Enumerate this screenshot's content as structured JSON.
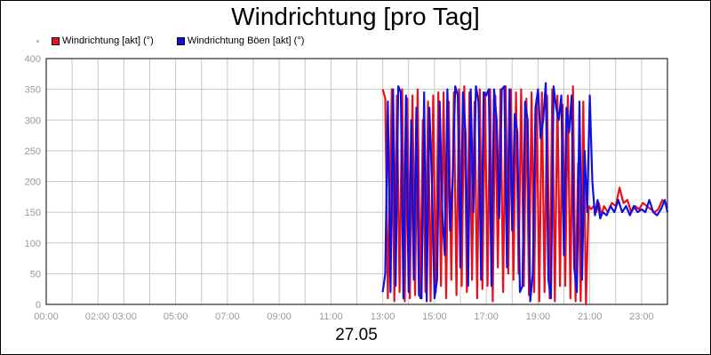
{
  "chart_data": {
    "type": "line",
    "title": "Windrichtung [pro Tag]",
    "date_label": "27.05",
    "ylim": [
      0,
      400
    ],
    "yticks": [
      "0",
      "50",
      "100",
      "150",
      "200",
      "250",
      "300",
      "350",
      "400"
    ],
    "xlim": [
      0,
      24
    ],
    "xticks": [
      {
        "h": 0,
        "label": "00:00"
      },
      {
        "h": 2.5,
        "label": "02:00 03:00"
      },
      {
        "h": 5,
        "label": "05:00"
      },
      {
        "h": 7,
        "label": "07:00"
      },
      {
        "h": 9,
        "label": "09:00"
      },
      {
        "h": 11,
        "label": "11:00"
      },
      {
        "h": 13,
        "label": "13:00"
      },
      {
        "h": 15,
        "label": "15:00"
      },
      {
        "h": 17,
        "label": "17:00"
      },
      {
        "h": 19,
        "label": "19:00"
      },
      {
        "h": 21,
        "label": "21:00"
      },
      {
        "h": 23,
        "label": "23:00"
      }
    ],
    "grid": true,
    "legend_placement": "top-left",
    "series": [
      {
        "name": "Windrichtung [akt] (°)",
        "color": "#e8101c",
        "points": [
          [
            13.0,
            350
          ],
          [
            13.1,
            335
          ],
          [
            13.2,
            10
          ],
          [
            13.35,
            350
          ],
          [
            13.45,
            5
          ],
          [
            13.55,
            340
          ],
          [
            13.65,
            20
          ],
          [
            13.75,
            350
          ],
          [
            13.85,
            5
          ],
          [
            13.95,
            335
          ],
          [
            14.05,
            10
          ],
          [
            14.15,
            340
          ],
          [
            14.25,
            15
          ],
          [
            14.35,
            350
          ],
          [
            14.45,
            10
          ],
          [
            14.55,
            300
          ],
          [
            14.65,
            20
          ],
          [
            14.75,
            330
          ],
          [
            14.85,
            5
          ],
          [
            14.95,
            340
          ],
          [
            15.05,
            20
          ],
          [
            15.15,
            345
          ],
          [
            15.25,
            30
          ],
          [
            15.35,
            345
          ],
          [
            15.45,
            10
          ],
          [
            15.55,
            330
          ],
          [
            15.65,
            40
          ],
          [
            15.75,
            345
          ],
          [
            15.85,
            15
          ],
          [
            15.95,
            350
          ],
          [
            16.05,
            30
          ],
          [
            16.15,
            355
          ],
          [
            16.25,
            20
          ],
          [
            16.35,
            345
          ],
          [
            16.45,
            40
          ],
          [
            16.55,
            330
          ],
          [
            16.65,
            10
          ],
          [
            16.75,
            350
          ],
          [
            16.85,
            25
          ],
          [
            16.95,
            345
          ],
          [
            17.05,
            30
          ],
          [
            17.15,
            350
          ],
          [
            17.25,
            5
          ],
          [
            17.35,
            340
          ],
          [
            17.45,
            60
          ],
          [
            17.55,
            350
          ],
          [
            17.65,
            20
          ],
          [
            17.75,
            355
          ],
          [
            17.85,
            50
          ],
          [
            17.95,
            350
          ],
          [
            18.05,
            40
          ],
          [
            18.15,
            345
          ],
          [
            18.25,
            50
          ],
          [
            18.35,
            350
          ],
          [
            18.45,
            30
          ],
          [
            18.55,
            335
          ],
          [
            18.65,
            15
          ],
          [
            18.75,
            345
          ],
          [
            18.85,
            20
          ],
          [
            18.95,
            335
          ],
          [
            19.05,
            5
          ],
          [
            19.15,
            345
          ],
          [
            19.25,
            20
          ],
          [
            19.35,
            340
          ],
          [
            19.45,
            10
          ],
          [
            19.55,
            350
          ],
          [
            19.65,
            5
          ],
          [
            19.75,
            340
          ],
          [
            19.85,
            30
          ],
          [
            19.95,
            325
          ],
          [
            20.05,
            30
          ],
          [
            20.15,
            340
          ],
          [
            20.25,
            10
          ],
          [
            20.35,
            355
          ],
          [
            20.45,
            5
          ],
          [
            20.55,
            230
          ],
          [
            20.65,
            5
          ],
          [
            20.75,
            330
          ],
          [
            20.85,
            0
          ],
          [
            20.95,
            160
          ],
          [
            21.05,
            155
          ],
          [
            21.15,
            160
          ],
          [
            21.25,
            150
          ],
          [
            21.35,
            165
          ],
          [
            21.45,
            145
          ],
          [
            21.55,
            160
          ],
          [
            21.7,
            150
          ],
          [
            21.85,
            165
          ],
          [
            22.0,
            160
          ],
          [
            22.15,
            190
          ],
          [
            22.3,
            165
          ],
          [
            22.45,
            170
          ],
          [
            22.6,
            150
          ],
          [
            22.75,
            160
          ],
          [
            22.9,
            155
          ],
          [
            23.05,
            165
          ],
          [
            23.2,
            160
          ],
          [
            23.35,
            155
          ],
          [
            23.5,
            150
          ],
          [
            23.65,
            155
          ],
          [
            23.8,
            170
          ],
          [
            24.0,
            160
          ]
        ]
      },
      {
        "name": "Windrichtung Böen [akt] (°)",
        "color": "#1010e0",
        "points": [
          [
            13.0,
            20
          ],
          [
            13.1,
            50
          ],
          [
            13.2,
            330
          ],
          [
            13.3,
            20
          ],
          [
            13.4,
            350
          ],
          [
            13.5,
            30
          ],
          [
            13.6,
            355
          ],
          [
            13.7,
            345
          ],
          [
            13.8,
            10
          ],
          [
            13.9,
            340
          ],
          [
            14.0,
            20
          ],
          [
            14.1,
            300
          ],
          [
            14.2,
            40
          ],
          [
            14.3,
            320
          ],
          [
            14.4,
            15
          ],
          [
            14.5,
            10
          ],
          [
            14.6,
            345
          ],
          [
            14.7,
            5
          ],
          [
            14.8,
            320
          ],
          [
            14.9,
            200
          ],
          [
            15.0,
            10
          ],
          [
            15.1,
            40
          ],
          [
            15.2,
            330
          ],
          [
            15.3,
            150
          ],
          [
            15.4,
            80
          ],
          [
            15.5,
            350
          ],
          [
            15.6,
            120
          ],
          [
            15.7,
            200
          ],
          [
            15.8,
            355
          ],
          [
            15.9,
            340
          ],
          [
            16.0,
            60
          ],
          [
            16.1,
            345
          ],
          [
            16.2,
            280
          ],
          [
            16.3,
            30
          ],
          [
            16.4,
            350
          ],
          [
            16.5,
            150
          ],
          [
            16.6,
            355
          ],
          [
            16.7,
            330
          ],
          [
            16.8,
            40
          ],
          [
            16.9,
            345
          ],
          [
            17.0,
            340
          ],
          [
            17.1,
            350
          ],
          [
            17.2,
            30
          ],
          [
            17.3,
            350
          ],
          [
            17.4,
            300
          ],
          [
            17.5,
            140
          ],
          [
            17.6,
            350
          ],
          [
            17.7,
            355
          ],
          [
            17.8,
            60
          ],
          [
            17.9,
            350
          ],
          [
            18.0,
            120
          ],
          [
            18.1,
            310
          ],
          [
            18.2,
            280
          ],
          [
            18.3,
            20
          ],
          [
            18.4,
            30
          ],
          [
            18.5,
            330
          ],
          [
            18.6,
            300
          ],
          [
            18.7,
            5
          ],
          [
            18.8,
            50
          ],
          [
            18.9,
            320
          ],
          [
            19.0,
            350
          ],
          [
            19.1,
            270
          ],
          [
            19.2,
            300
          ],
          [
            19.3,
            360
          ],
          [
            19.4,
            40
          ],
          [
            19.5,
            10
          ],
          [
            19.6,
            355
          ],
          [
            19.7,
            320
          ],
          [
            19.8,
            300
          ],
          [
            19.9,
            340
          ],
          [
            20.0,
            80
          ],
          [
            20.1,
            320
          ],
          [
            20.2,
            280
          ],
          [
            20.3,
            340
          ],
          [
            20.4,
            60
          ],
          [
            20.5,
            20
          ],
          [
            20.6,
            330
          ],
          [
            20.7,
            40
          ],
          [
            20.8,
            250
          ],
          [
            20.9,
            150
          ],
          [
            21.0,
            340
          ],
          [
            21.1,
            200
          ],
          [
            21.2,
            145
          ],
          [
            21.3,
            170
          ],
          [
            21.4,
            140
          ],
          [
            21.5,
            150
          ],
          [
            21.65,
            145
          ],
          [
            21.8,
            160
          ],
          [
            21.95,
            150
          ],
          [
            22.1,
            170
          ],
          [
            22.25,
            150
          ],
          [
            22.4,
            160
          ],
          [
            22.55,
            145
          ],
          [
            22.7,
            160
          ],
          [
            22.85,
            150
          ],
          [
            23.0,
            155
          ],
          [
            23.15,
            150
          ],
          [
            23.3,
            170
          ],
          [
            23.45,
            150
          ],
          [
            23.6,
            145
          ],
          [
            23.75,
            155
          ],
          [
            23.9,
            170
          ],
          [
            24.0,
            150
          ]
        ]
      }
    ]
  }
}
